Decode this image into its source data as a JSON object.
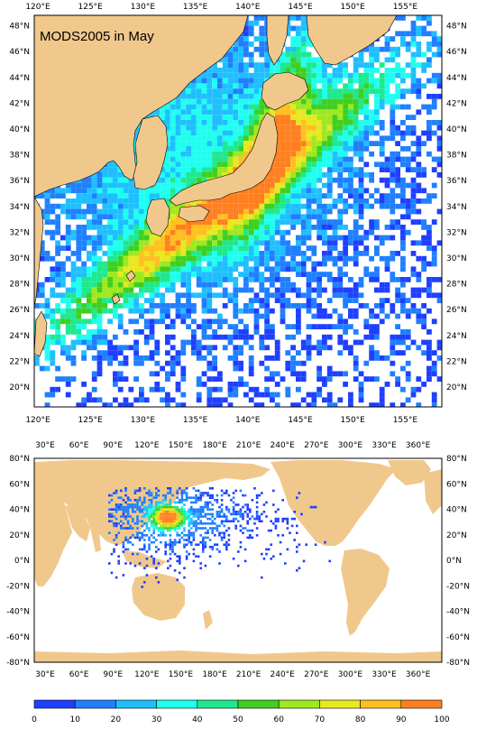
{
  "top_map": {
    "title": "MODS2005 in May",
    "lon_labels": [
      "120°E",
      "125°E",
      "130°E",
      "135°E",
      "140°E",
      "145°E",
      "150°E",
      "155°E"
    ],
    "lat_labels": [
      "20°N",
      "22°N",
      "24°N",
      "26°N",
      "28°N",
      "30°N",
      "32°N",
      "34°N",
      "36°N",
      "38°N",
      "40°N",
      "42°N",
      "44°N",
      "46°N",
      "48°N"
    ],
    "lon_range": [
      119.5,
      157
    ],
    "lat_range": [
      18.5,
      49.3
    ]
  },
  "bottom_map": {
    "lon_labels": [
      "30°E",
      "60°E",
      "90°E",
      "120°E",
      "150°E",
      "180°E",
      "210°E",
      "240°E",
      "270°E",
      "300°E",
      "330°E",
      "360°E"
    ],
    "lat_labels": [
      "-80°N",
      "-60°N",
      "-40°N",
      "-20°N",
      "0°N",
      "20°N",
      "40°N",
      "60°N",
      "80°N"
    ],
    "lon_range": [
      15,
      375
    ],
    "lat_range": [
      -80,
      80
    ]
  },
  "colorbar": {
    "labels": [
      "0",
      "10",
      "20",
      "30",
      "40",
      "50",
      "60",
      "70",
      "80",
      "90",
      "100"
    ],
    "colors": [
      "#1f3fff",
      "#1f7fff",
      "#1fbfff",
      "#1fffef",
      "#1fe88f",
      "#3fcf1f",
      "#9fe81f",
      "#e8e81f",
      "#ffbf1f",
      "#ff7f1f",
      "#ff1f1f"
    ]
  },
  "colors": {
    "land": "#f0c88c",
    "coast": "#000000",
    "sea": "#ffffff"
  }
}
